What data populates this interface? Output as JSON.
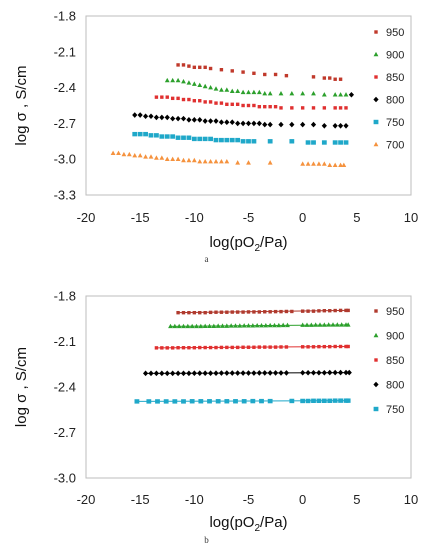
{
  "chart_data": [
    {
      "type": "scatter",
      "caption": "a",
      "ylabel": "log σ , S/cm",
      "xlabel_parts": [
        "log(pO",
        "2",
        "/Pa)"
      ],
      "xlim": [
        -20,
        10
      ],
      "ylim": [
        -3.3,
        -1.8
      ],
      "x_ticks": [
        -20,
        -15,
        -10,
        -5,
        0,
        5,
        10
      ],
      "x_tick_labels": [
        "-20",
        "-15",
        "-10",
        "-5",
        "0",
        "5",
        "10"
      ],
      "y_ticks": [
        -1.8,
        -2.1,
        -2.4,
        -2.7,
        -3.0,
        -3.3
      ],
      "y_tick_labels": [
        "-1.8",
        "-2.1",
        "-2.4",
        "-2.7",
        "-3.0",
        "-3.3"
      ],
      "grid": false,
      "legend_position": "right",
      "series": [
        {
          "name": "950",
          "color": "#c0392b",
          "marker": "square-small",
          "x": [
            -11.5,
            -11,
            -10.5,
            -10,
            -9.5,
            -9,
            -8.5,
            -7.5,
            -6.5,
            -5.5,
            -4.5,
            -3.5,
            -2.5,
            -1.5,
            1,
            2,
            2.5,
            3,
            3.5
          ],
          "y": [
            -2.21,
            -2.21,
            -2.22,
            -2.23,
            -2.23,
            -2.23,
            -2.24,
            -2.25,
            -2.26,
            -2.27,
            -2.28,
            -2.29,
            -2.29,
            -2.3,
            -2.31,
            -2.32,
            -2.32,
            -2.33,
            -2.33
          ]
        },
        {
          "name": "900",
          "color": "#2ca02c",
          "marker": "triangle",
          "x": [
            -12.5,
            -12,
            -11.5,
            -11,
            -10.5,
            -10,
            -9.5,
            -9,
            -8.5,
            -8,
            -7.5,
            -7,
            -6.5,
            -6,
            -5.5,
            -5,
            -4.5,
            -4,
            -3.5,
            -3,
            -2,
            -1,
            0,
            1,
            2,
            3,
            3.5,
            4
          ],
          "y": [
            -2.34,
            -2.34,
            -2.34,
            -2.35,
            -2.36,
            -2.37,
            -2.38,
            -2.39,
            -2.4,
            -2.41,
            -2.42,
            -2.42,
            -2.43,
            -2.43,
            -2.44,
            -2.44,
            -2.44,
            -2.44,
            -2.45,
            -2.45,
            -2.45,
            -2.45,
            -2.45,
            -2.45,
            -2.46,
            -2.46,
            -2.46,
            -2.46
          ]
        },
        {
          "name": "850",
          "color": "#e03030",
          "marker": "square-small",
          "x": [
            -13.5,
            -13,
            -12.5,
            -12,
            -11.5,
            -11,
            -10.5,
            -10,
            -9.5,
            -9,
            -8.5,
            -8,
            -7.5,
            -7,
            -6.5,
            -6,
            -5.5,
            -5,
            -4.5,
            -4,
            -3.5,
            -3,
            -2.5,
            -2,
            -1,
            0,
            1,
            2,
            3,
            3.5,
            4
          ],
          "y": [
            -2.48,
            -2.48,
            -2.48,
            -2.49,
            -2.49,
            -2.5,
            -2.5,
            -2.51,
            -2.51,
            -2.52,
            -2.52,
            -2.53,
            -2.53,
            -2.54,
            -2.54,
            -2.54,
            -2.55,
            -2.55,
            -2.55,
            -2.56,
            -2.56,
            -2.56,
            -2.56,
            -2.57,
            -2.57,
            -2.57,
            -2.57,
            -2.57,
            -2.57,
            -2.57,
            -2.57
          ]
        },
        {
          "name": "800",
          "color": "#000000",
          "marker": "diamond",
          "x": [
            -15.5,
            -15,
            -14.5,
            -14,
            -13.5,
            -13,
            -12.5,
            -12,
            -11.5,
            -11,
            -10.5,
            -10,
            -9.5,
            -9,
            -8.5,
            -8,
            -7.5,
            -7,
            -6.5,
            -6,
            -5.5,
            -5,
            -4.5,
            -4,
            -3.5,
            -3,
            -2,
            -1,
            0,
            1,
            2,
            3,
            3.5,
            4,
            4.5
          ],
          "y": [
            -2.63,
            -2.63,
            -2.64,
            -2.64,
            -2.65,
            -2.65,
            -2.65,
            -2.66,
            -2.66,
            -2.66,
            -2.67,
            -2.67,
            -2.67,
            -2.68,
            -2.68,
            -2.68,
            -2.69,
            -2.69,
            -2.69,
            -2.7,
            -2.7,
            -2.7,
            -2.7,
            -2.7,
            -2.71,
            -2.71,
            -2.71,
            -2.71,
            -2.71,
            -2.71,
            -2.72,
            -2.72,
            -2.72,
            -2.72,
            -2.46
          ]
        },
        {
          "name": "750",
          "color": "#1fa8c9",
          "marker": "square",
          "x": [
            -15.5,
            -15,
            -14.5,
            -14,
            -13.5,
            -13,
            -12.5,
            -12,
            -11.5,
            -11,
            -10.5,
            -10,
            -9.5,
            -9,
            -8.5,
            -8,
            -7.5,
            -7,
            -6.5,
            -6,
            -5.5,
            -5,
            -4.5,
            -3,
            -1,
            0.5,
            1,
            2,
            3,
            3.5,
            4
          ],
          "y": [
            -2.79,
            -2.79,
            -2.79,
            -2.8,
            -2.8,
            -2.81,
            -2.81,
            -2.81,
            -2.82,
            -2.82,
            -2.82,
            -2.83,
            -2.83,
            -2.83,
            -2.83,
            -2.84,
            -2.84,
            -2.84,
            -2.84,
            -2.84,
            -2.85,
            -2.85,
            -2.85,
            -2.85,
            -2.85,
            -2.86,
            -2.86,
            -2.86,
            -2.86,
            -2.86,
            -2.86
          ]
        },
        {
          "name": "700",
          "color": "#f5923e",
          "marker": "triangle",
          "x": [
            -17.5,
            -17,
            -16.5,
            -16,
            -15.5,
            -15,
            -14.5,
            -14,
            -13.5,
            -13,
            -12.5,
            -12,
            -11.5,
            -11,
            -10.5,
            -10,
            -9.5,
            -9,
            -8.5,
            -8,
            -7.5,
            -7,
            -6,
            -5,
            -3,
            0,
            0.5,
            1,
            1.5,
            2,
            2.5,
            3,
            3.5,
            3.8
          ],
          "y": [
            -2.95,
            -2.95,
            -2.96,
            -2.96,
            -2.97,
            -2.97,
            -2.98,
            -2.98,
            -2.99,
            -2.99,
            -3.0,
            -3.0,
            -3.0,
            -3.01,
            -3.01,
            -3.01,
            -3.02,
            -3.02,
            -3.02,
            -3.02,
            -3.02,
            -3.02,
            -3.03,
            -3.03,
            -3.03,
            -3.04,
            -3.04,
            -3.04,
            -3.04,
            -3.04,
            -3.05,
            -3.05,
            -3.05,
            -3.05
          ]
        }
      ]
    },
    {
      "type": "scatter",
      "caption": "b",
      "ylabel": "log σ , S/cm",
      "xlabel_parts": [
        "log(pO",
        "2",
        "/Pa)"
      ],
      "xlim": [
        -20,
        10
      ],
      "ylim": [
        -3.0,
        -1.8
      ],
      "x_ticks": [
        -20,
        -15,
        -10,
        -5,
        0,
        5,
        10
      ],
      "x_tick_labels": [
        "-20",
        "-15",
        "-10",
        "-5",
        "0",
        "5",
        "10"
      ],
      "y_ticks": [
        -1.8,
        -2.1,
        -2.4,
        -2.7,
        -3.0
      ],
      "y_tick_labels": [
        "-1.8",
        "-2.1",
        "-2.4",
        "-2.7",
        "-3.0"
      ],
      "grid": false,
      "legend_position": "right",
      "series": [
        {
          "name": "950",
          "color": "#b03a2e",
          "marker": "square-small",
          "fit": [
            [
              -11.5,
              -1.91
            ],
            [
              4.2,
              -1.895
            ]
          ],
          "x": [
            -11.5,
            -11,
            -10.5,
            -10,
            -9.5,
            -9,
            -8.5,
            -8,
            -7.5,
            -7,
            -6.5,
            -6,
            -5.5,
            -5,
            -4.5,
            -4,
            -3.5,
            -3,
            -2.5,
            -2,
            -1.5,
            -1,
            0,
            0.5,
            1,
            1.5,
            2,
            2.5,
            3,
            3.5,
            4,
            4.2
          ],
          "y": [
            -1.91,
            -1.91,
            -1.91,
            -1.91,
            -1.91,
            -1.91,
            -1.908,
            -1.907,
            -1.907,
            -1.907,
            -1.906,
            -1.906,
            -1.906,
            -1.905,
            -1.905,
            -1.905,
            -1.904,
            -1.904,
            -1.903,
            -1.903,
            -1.902,
            -1.902,
            -1.9,
            -1.9,
            -1.9,
            -1.898,
            -1.897,
            -1.897,
            -1.896,
            -1.895,
            -1.895,
            -1.895
          ]
        },
        {
          "name": "900",
          "color": "#2ca02c",
          "marker": "triangle",
          "fit": [
            [
              -12.2,
              -2.0
            ],
            [
              4.2,
              -1.99
            ]
          ],
          "x": [
            -12.2,
            -11.8,
            -11.4,
            -11,
            -10.6,
            -10.2,
            -9.8,
            -9.4,
            -9,
            -8.6,
            -8.2,
            -7.8,
            -7.4,
            -7,
            -6.6,
            -6.2,
            -5.8,
            -5.4,
            -5,
            -4.6,
            -4.2,
            -3.8,
            -3.4,
            -3,
            -2.6,
            -2.2,
            -1.8,
            -1.4,
            0,
            0.4,
            0.8,
            1.2,
            1.6,
            2,
            2.4,
            2.8,
            3.2,
            3.6,
            4,
            4.2
          ],
          "y": [
            -2.0,
            -2.0,
            -2.0,
            -2.0,
            -2.0,
            -2.0,
            -2.0,
            -2.0,
            -1.999,
            -1.999,
            -1.999,
            -1.998,
            -1.998,
            -1.998,
            -1.997,
            -1.997,
            -1.997,
            -1.996,
            -1.996,
            -1.996,
            -1.995,
            -1.995,
            -1.995,
            -1.994,
            -1.994,
            -1.994,
            -1.993,
            -1.993,
            -1.992,
            -1.992,
            -1.992,
            -1.991,
            -1.991,
            -1.991,
            -1.99,
            -1.99,
            -1.99,
            -1.99,
            -1.99,
            -1.99
          ]
        },
        {
          "name": "850",
          "color": "#e03030",
          "marker": "square-small",
          "fit": [
            [
              -13.5,
              -2.142
            ],
            [
              4.2,
              -2.133
            ]
          ],
          "x": [
            -13.5,
            -13,
            -12.5,
            -12,
            -11.5,
            -11,
            -10.5,
            -10,
            -9.5,
            -9,
            -8.5,
            -8,
            -7.5,
            -7,
            -6.5,
            -6,
            -5.5,
            -5,
            -4.5,
            -4,
            -3.5,
            -3,
            -2.5,
            -2,
            -1.5,
            0,
            0.5,
            1,
            1.5,
            2,
            2.5,
            3,
            3.5,
            4,
            4.2
          ],
          "y": [
            -2.142,
            -2.142,
            -2.142,
            -2.142,
            -2.141,
            -2.141,
            -2.141,
            -2.141,
            -2.14,
            -2.14,
            -2.14,
            -2.14,
            -2.139,
            -2.139,
            -2.139,
            -2.139,
            -2.138,
            -2.138,
            -2.138,
            -2.137,
            -2.137,
            -2.137,
            -2.137,
            -2.136,
            -2.136,
            -2.135,
            -2.135,
            -2.135,
            -2.134,
            -2.134,
            -2.134,
            -2.133,
            -2.133,
            -2.133,
            -2.133
          ]
        },
        {
          "name": "800",
          "color": "#000000",
          "marker": "diamond",
          "fit": [
            [
              -14.5,
              -2.31
            ],
            [
              4.3,
              -2.305
            ]
          ],
          "x": [
            -14.5,
            -14,
            -13.5,
            -13,
            -12.5,
            -12,
            -11.5,
            -11,
            -10.5,
            -10,
            -9.5,
            -9,
            -8.5,
            -8,
            -7.5,
            -7,
            -6.5,
            -6,
            -5.5,
            -5,
            -4.5,
            -4,
            -3.5,
            -3,
            -2.5,
            -2,
            -1.5,
            0,
            0.5,
            1,
            1.5,
            2,
            2.5,
            3,
            3.5,
            4,
            4.3
          ],
          "y": [
            -2.31,
            -2.31,
            -2.31,
            -2.31,
            -2.31,
            -2.31,
            -2.31,
            -2.31,
            -2.31,
            -2.309,
            -2.309,
            -2.309,
            -2.309,
            -2.309,
            -2.308,
            -2.308,
            -2.308,
            -2.308,
            -2.308,
            -2.308,
            -2.308,
            -2.307,
            -2.307,
            -2.307,
            -2.307,
            -2.307,
            -2.307,
            -2.306,
            -2.306,
            -2.306,
            -2.306,
            -2.306,
            -2.305,
            -2.305,
            -2.305,
            -2.305,
            -2.305
          ]
        },
        {
          "name": "750",
          "color": "#1fa8c9",
          "marker": "square",
          "fit": [
            [
              -15.3,
              -2.495
            ],
            [
              4.2,
              -2.49
            ]
          ],
          "x": [
            -15.3,
            -14.2,
            -13.4,
            -12.6,
            -11.8,
            -11,
            -10.2,
            -9.4,
            -8.6,
            -7.8,
            -7,
            -6.2,
            -5.4,
            -4.6,
            -3.8,
            -3,
            -1,
            0,
            0.5,
            1,
            1.5,
            2,
            2.5,
            3,
            3.5,
            4,
            4.2
          ],
          "y": [
            -2.495,
            -2.495,
            -2.495,
            -2.495,
            -2.495,
            -2.495,
            -2.494,
            -2.494,
            -2.494,
            -2.494,
            -2.494,
            -2.494,
            -2.494,
            -2.493,
            -2.493,
            -2.493,
            -2.492,
            -2.492,
            -2.492,
            -2.491,
            -2.491,
            -2.491,
            -2.491,
            -2.49,
            -2.49,
            -2.49,
            -2.49
          ]
        }
      ]
    }
  ]
}
